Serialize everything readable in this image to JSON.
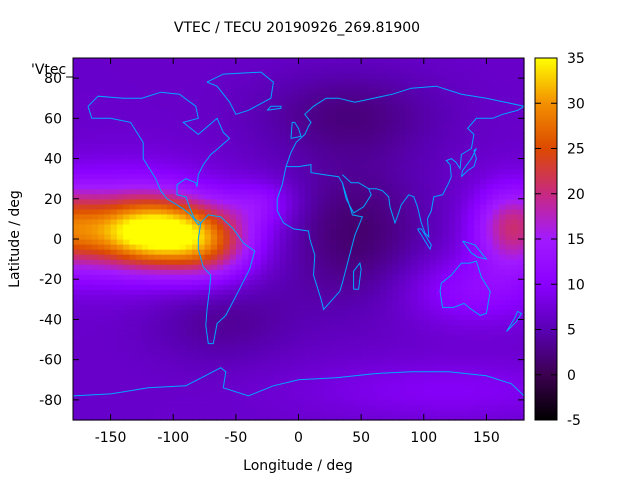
{
  "chart_data": {
    "type": "heatmap",
    "title": "VTEC / TECU 20190926_269.81900",
    "xlabel": "Longitude / deg",
    "ylabel": "Latitude / deg",
    "xlim": [
      -180,
      180
    ],
    "ylim": [
      -90,
      90
    ],
    "x_ticks": [
      -150,
      -100,
      -50,
      0,
      50,
      100,
      150
    ],
    "y_ticks": [
      -80,
      -60,
      -40,
      -20,
      0,
      20,
      40,
      60,
      80
    ],
    "colorbar": {
      "range": [
        -5,
        35
      ],
      "ticks": [
        -5,
        0,
        5,
        10,
        15,
        20,
        25,
        30,
        35
      ],
      "colors": [
        "#000000",
        "#3c0050",
        "#5a00b4",
        "#8a00ff",
        "#a21aff",
        "#c82a80",
        "#dc4a00",
        "#f39000",
        "#ffff00"
      ]
    },
    "legend": {
      "entry": "'Vtec_"
    },
    "coastline_color": "#00a8ff",
    "grid": false
  }
}
